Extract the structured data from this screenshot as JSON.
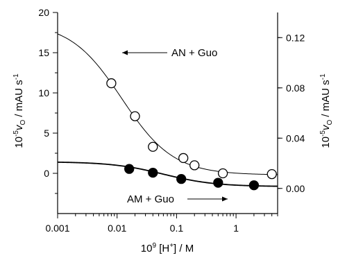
{
  "chart_data": {
    "type": "scatter",
    "x_scale": "log",
    "xlim": [
      0.001,
      5
    ],
    "ylim_left": [
      -5,
      20
    ],
    "ylim_right": [
      -0.02,
      0.14
    ],
    "x_ticks": [
      "0.001",
      "0.01",
      "0.1",
      "1"
    ],
    "x_tick_values": [
      0.001,
      0.01,
      0.1,
      1
    ],
    "y_left_ticks": [
      "0",
      "5",
      "10",
      "15",
      "20"
    ],
    "y_left_tick_values": [
      0,
      5,
      10,
      15,
      20
    ],
    "y_right_ticks": [
      "0.00",
      "0.04",
      "0.08",
      "0.12"
    ],
    "y_right_tick_values": [
      0,
      0.04,
      0.08,
      0.12
    ],
    "xlabel": {
      "base": "10",
      "exp": "9",
      "mid": " [H",
      "sup": "+",
      "tail": "] / M"
    },
    "ylabel_left": {
      "pre": "10",
      "exp": "-5",
      "mid": "v",
      "sub": "O",
      "tail": " / mAU s",
      "tail_exp": "-1"
    },
    "ylabel_right": {
      "pre": "10",
      "exp": "-5",
      "mid": "v",
      "sub": "O",
      "tail": " / mAU s",
      "tail_exp": "-1"
    },
    "grid": false,
    "series": [
      {
        "name": "AN + Guo",
        "axis": "left",
        "marker": "open-circle",
        "x": [
          0.008,
          0.02,
          0.04,
          0.13,
          0.2,
          0.6,
          4
        ],
        "y": [
          11.2,
          7.1,
          3.3,
          1.9,
          1.0,
          0.0,
          -0.1
        ]
      },
      {
        "name": "AM + Guo",
        "axis": "right",
        "marker": "filled-circle",
        "x": [
          0.016,
          0.04,
          0.12,
          0.5,
          2
        ],
        "y": [
          0.0155,
          0.0125,
          0.0075,
          0.0045,
          0.0025
        ]
      }
    ],
    "fits": [
      {
        "axis": "left",
        "model": "hyperbolic",
        "a": 18.8,
        "b": -0.2,
        "k": 0.012
      },
      {
        "axis": "right",
        "model": "hyperbolic",
        "a": 0.0212,
        "b": 0.0015,
        "k": 0.06
      }
    ],
    "annotations": [
      {
        "text": "AN + Guo",
        "arrow": "left"
      },
      {
        "text": "AM + Guo",
        "arrow": "right"
      }
    ]
  }
}
